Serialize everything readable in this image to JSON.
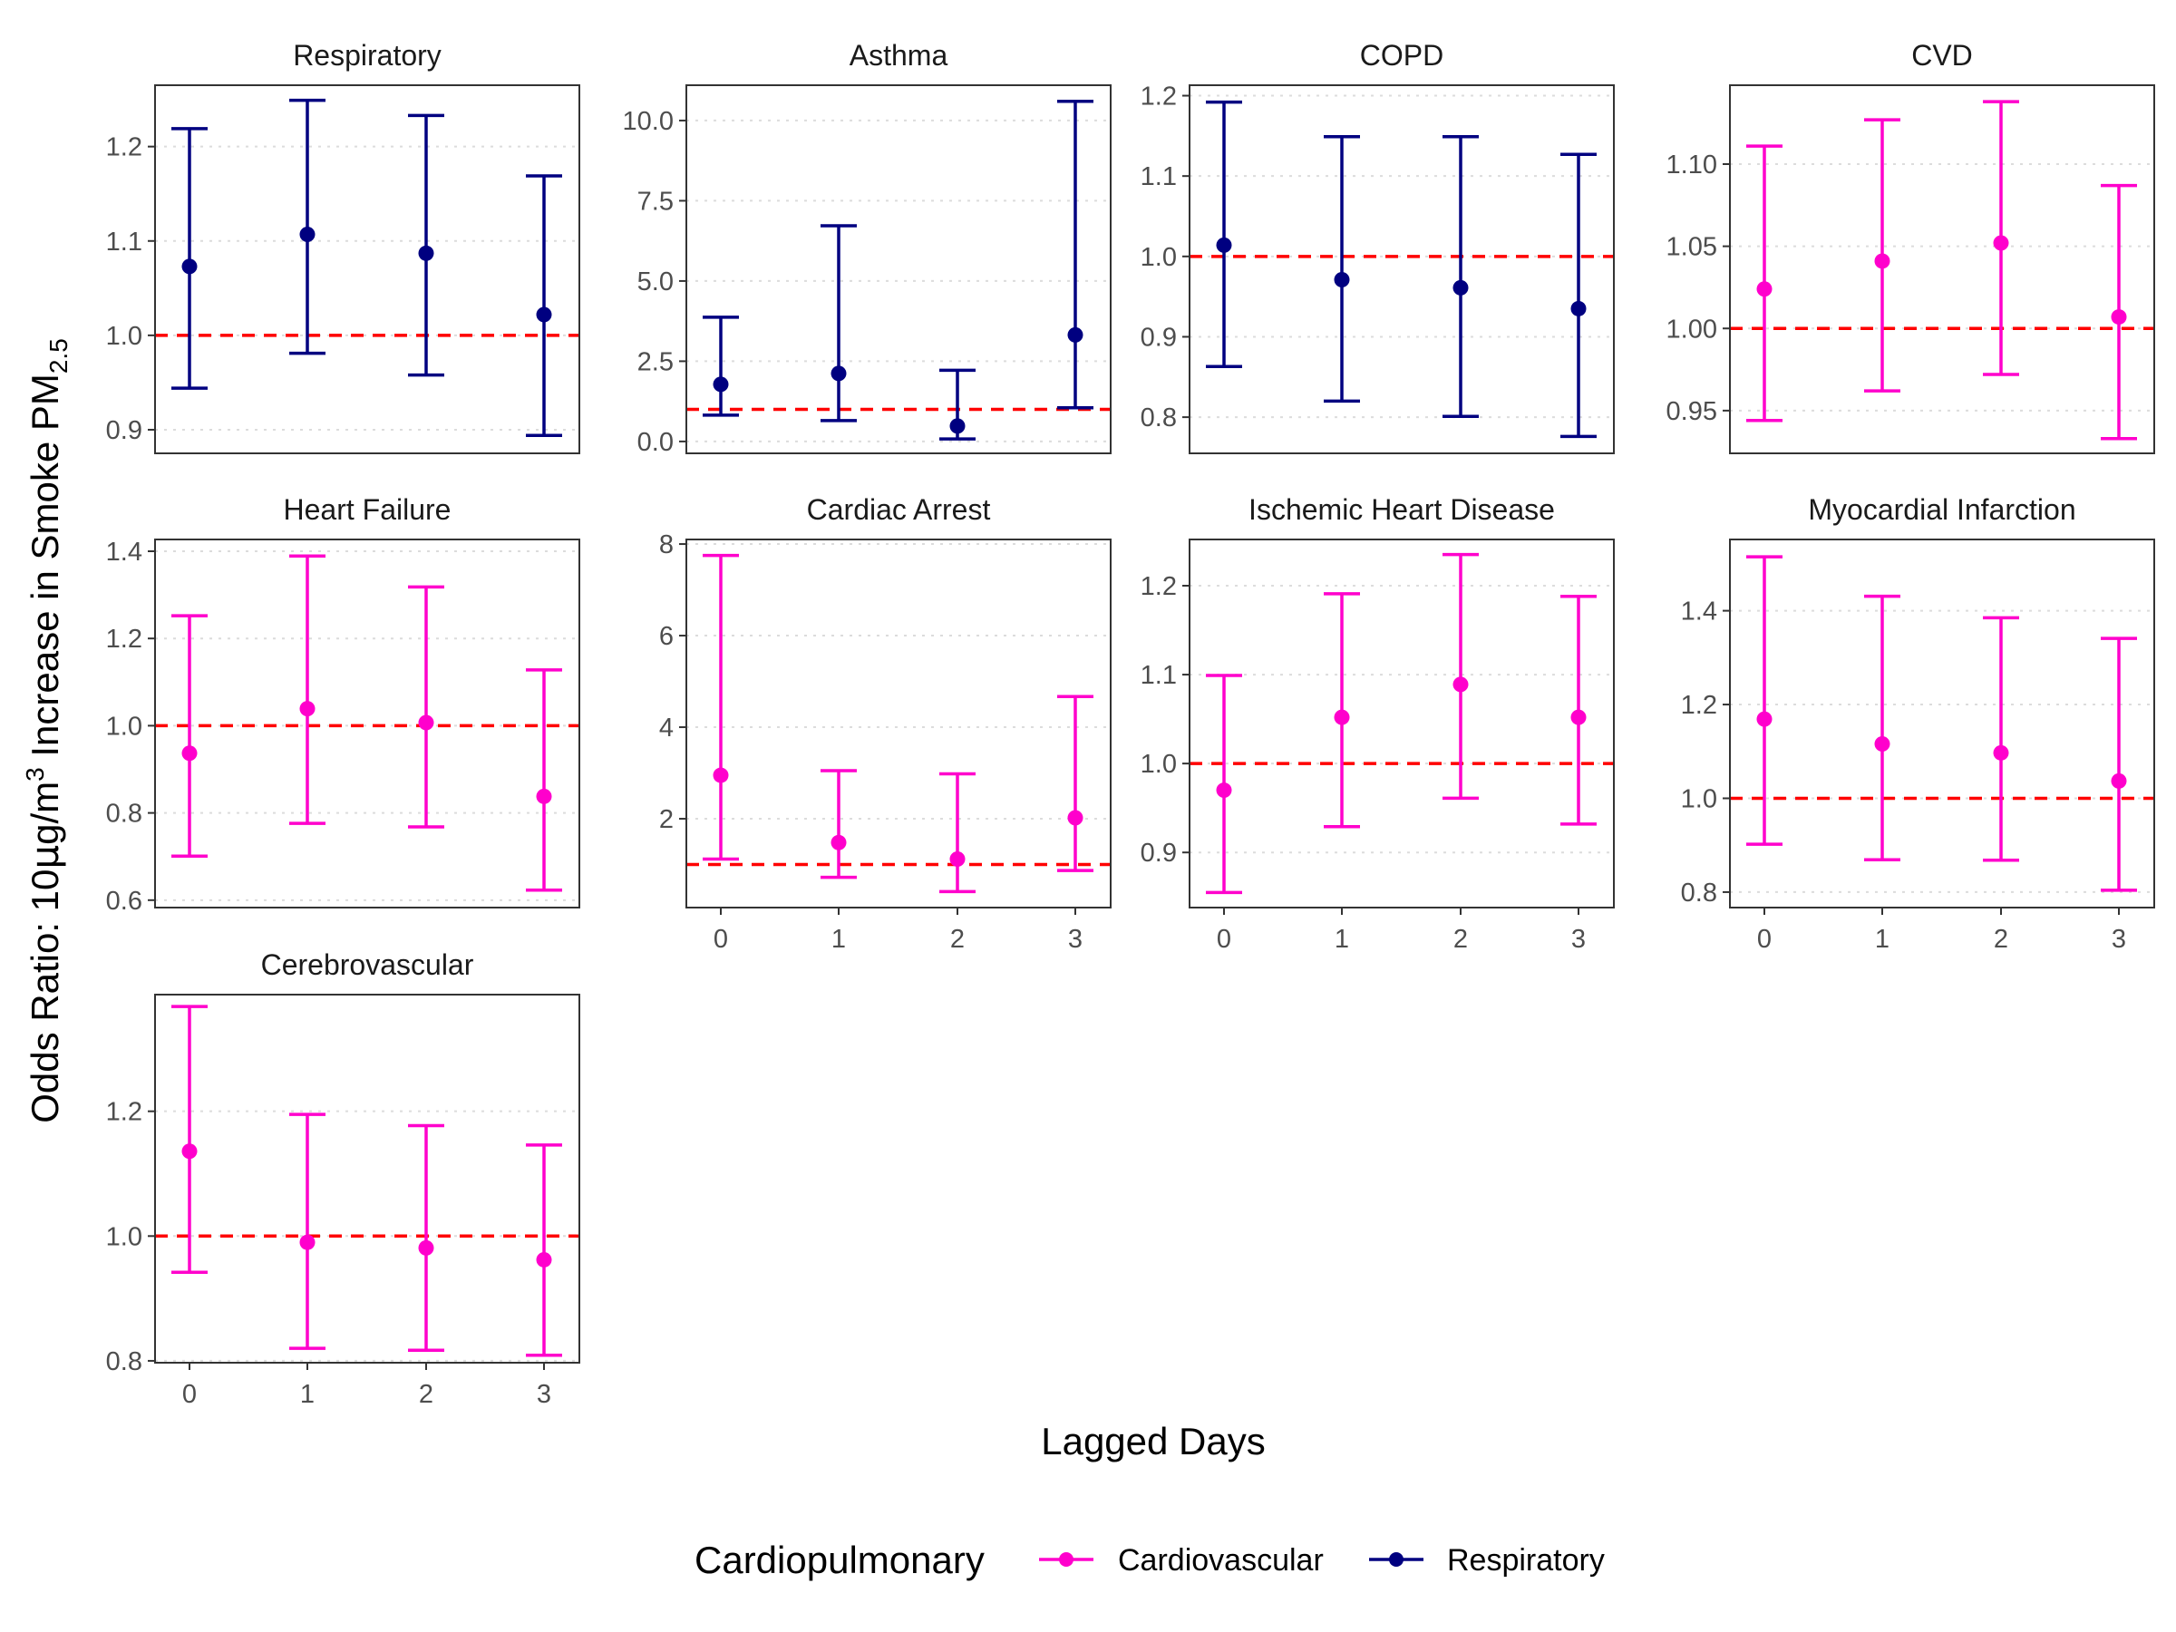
{
  "figure": {
    "x_axis_title": "Lagged Days",
    "y_axis_title": {
      "prefix": "Odds Ratio: 10",
      "mu": "μ",
      "g_per_m": "g/m",
      "cube": "3",
      "rest": " Increase in Smoke PM",
      "subscript": "2.5"
    },
    "legend": {
      "title": "Cardiopulmonary",
      "items": [
        {
          "label": "Cardiovascular",
          "color": "#ff00cc"
        },
        {
          "label": "Respiratory",
          "color": "#000080"
        }
      ]
    },
    "reference_line": {
      "value": 1.0,
      "color": "#ff0000",
      "style": "dashed"
    }
  },
  "chart_data": [
    {
      "type": "errorbar",
      "title": "Respiratory",
      "group": "Respiratory",
      "color": "#000080",
      "x": [
        0,
        1,
        2,
        3
      ],
      "y": [
        1.073,
        1.107,
        1.087,
        1.022
      ],
      "lower": [
        0.944,
        0.981,
        0.958,
        0.894
      ],
      "upper": [
        1.219,
        1.249,
        1.233,
        1.169
      ],
      "ylim": [
        0.875,
        1.265
      ],
      "yticks": [
        0.9,
        1.0,
        1.1,
        1.2
      ],
      "ytick_labels": [
        "0.9",
        "1.0",
        "1.1",
        "1.2"
      ],
      "xticks_shown": false
    },
    {
      "type": "errorbar",
      "title": "Asthma",
      "group": "Respiratory",
      "color": "#000080",
      "x": [
        0,
        1,
        2,
        3
      ],
      "y": [
        1.78,
        2.12,
        0.48,
        3.32
      ],
      "lower": [
        0.82,
        0.65,
        0.08,
        1.05
      ],
      "upper": [
        3.87,
        6.72,
        2.22,
        10.6
      ],
      "ylim": [
        -0.37,
        11.1
      ],
      "yticks": [
        0,
        2.5,
        5,
        7.5,
        10
      ],
      "ytick_labels": [
        "0.0",
        "2.5",
        "5.0",
        "7.5",
        "10.0"
      ],
      "xticks_shown": false
    },
    {
      "type": "errorbar",
      "title": "COPD",
      "group": "Respiratory",
      "color": "#000080",
      "x": [
        0,
        1,
        2,
        3
      ],
      "y": [
        1.014,
        0.971,
        0.961,
        0.935
      ],
      "lower": [
        0.863,
        0.82,
        0.801,
        0.776
      ],
      "upper": [
        1.192,
        1.149,
        1.149,
        1.127
      ],
      "ylim": [
        0.755,
        1.213
      ],
      "yticks": [
        0.8,
        0.9,
        1.0,
        1.1,
        1.2
      ],
      "ytick_labels": [
        "0.8",
        "0.9",
        "1.0",
        "1.1",
        "1.2"
      ],
      "xticks_shown": false
    },
    {
      "type": "errorbar",
      "title": "CVD",
      "group": "Cardiovascular",
      "color": "#ff00cc",
      "x": [
        0,
        1,
        2,
        3
      ],
      "y": [
        1.024,
        1.041,
        1.052,
        1.007
      ],
      "lower": [
        0.944,
        0.962,
        0.972,
        0.933
      ],
      "upper": [
        1.111,
        1.127,
        1.138,
        1.087
      ],
      "ylim": [
        0.924,
        1.148
      ],
      "yticks": [
        0.95,
        1.0,
        1.05,
        1.1
      ],
      "ytick_labels": [
        "0.95",
        "1.00",
        "1.05",
        "1.10"
      ],
      "xticks_shown": false
    },
    {
      "type": "errorbar",
      "title": "Heart Failure",
      "group": "Cardiovascular",
      "color": "#ff00cc",
      "x": [
        0,
        1,
        2,
        3
      ],
      "y": [
        0.937,
        1.039,
        1.007,
        0.838
      ],
      "lower": [
        0.701,
        0.776,
        0.768,
        0.623
      ],
      "upper": [
        1.252,
        1.389,
        1.318,
        1.128
      ],
      "ylim": [
        0.583,
        1.427
      ],
      "yticks": [
        0.6,
        0.8,
        1.0,
        1.2,
        1.4
      ],
      "ytick_labels": [
        "0.6",
        "0.8",
        "1.0",
        "1.2",
        "1.4"
      ],
      "xticks_shown": false
    },
    {
      "type": "errorbar",
      "title": "Cardiac Arrest",
      "group": "Cardiovascular",
      "color": "#ff00cc",
      "x": [
        0,
        1,
        2,
        3
      ],
      "y": [
        2.95,
        1.48,
        1.12,
        2.02
      ],
      "lower": [
        1.12,
        0.72,
        0.41,
        0.87
      ],
      "upper": [
        7.75,
        3.05,
        2.98,
        4.67
      ],
      "ylim": [
        0.06,
        8.1
      ],
      "yticks": [
        2,
        4,
        6,
        8
      ],
      "ytick_labels": [
        "2",
        "4",
        "6",
        "8"
      ],
      "xticks_shown": true,
      "xtick_labels": [
        "0",
        "1",
        "2",
        "3"
      ]
    },
    {
      "type": "errorbar",
      "title": "Ischemic Heart Disease",
      "group": "Cardiovascular",
      "color": "#ff00cc",
      "x": [
        0,
        1,
        2,
        3
      ],
      "y": [
        0.97,
        1.052,
        1.089,
        1.052
      ],
      "lower": [
        0.855,
        0.929,
        0.961,
        0.932
      ],
      "upper": [
        1.099,
        1.191,
        1.235,
        1.188
      ],
      "ylim": [
        0.838,
        1.252
      ],
      "yticks": [
        0.9,
        1.0,
        1.1,
        1.2
      ],
      "ytick_labels": [
        "0.9",
        "1.0",
        "1.1",
        "1.2"
      ],
      "xticks_shown": true,
      "xtick_labels": [
        "0",
        "1",
        "2",
        "3"
      ]
    },
    {
      "type": "errorbar",
      "title": "Myocardial Infarction",
      "group": "Cardiovascular",
      "color": "#ff00cc",
      "x": [
        0,
        1,
        2,
        3
      ],
      "y": [
        1.169,
        1.116,
        1.097,
        1.037
      ],
      "lower": [
        0.902,
        0.869,
        0.868,
        0.804
      ],
      "upper": [
        1.515,
        1.431,
        1.385,
        1.341
      ],
      "ylim": [
        0.767,
        1.552
      ],
      "yticks": [
        0.8,
        1.0,
        1.2,
        1.4
      ],
      "ytick_labels": [
        "0.8",
        "1.0",
        "1.2",
        "1.4"
      ],
      "xticks_shown": true,
      "xtick_labels": [
        "0",
        "1",
        "2",
        "3"
      ]
    },
    {
      "type": "errorbar",
      "title": "Cerebrovascular",
      "group": "Cardiovascular",
      "color": "#ff00cc",
      "x": [
        0,
        1,
        2,
        3
      ],
      "y": [
        1.136,
        0.99,
        0.981,
        0.962
      ],
      "lower": [
        0.942,
        0.82,
        0.817,
        0.809
      ],
      "upper": [
        1.368,
        1.195,
        1.177,
        1.146
      ],
      "ylim": [
        0.797,
        1.387
      ],
      "yticks": [
        0.8,
        1.0,
        1.2
      ],
      "ytick_labels": [
        "0.8",
        "1.0",
        "1.2"
      ],
      "xticks_shown": true,
      "xtick_labels": [
        "0",
        "1",
        "2",
        "3"
      ]
    }
  ]
}
